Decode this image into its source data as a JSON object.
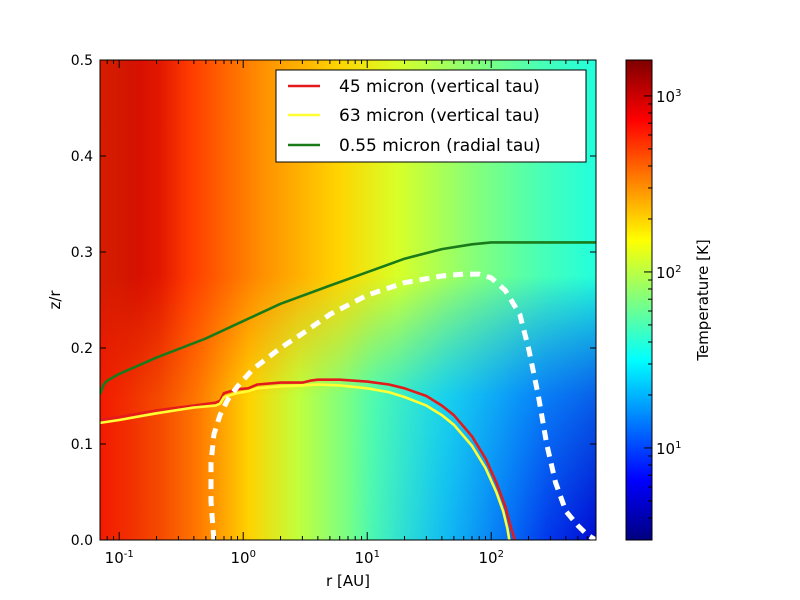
{
  "chart_data": {
    "type": "heatmap",
    "title": "",
    "xlabel": "r [AU]",
    "ylabel": "z/r",
    "xscale": "log",
    "xlim": [
      0.07,
      700
    ],
    "ylim": [
      0.0,
      0.5
    ],
    "x_ticks": [
      {
        "value": 0.1,
        "base": "10",
        "exp": "-1"
      },
      {
        "value": 1,
        "base": "10",
        "exp": "0"
      },
      {
        "value": 10,
        "base": "10",
        "exp": "1"
      },
      {
        "value": 100,
        "base": "10",
        "exp": "2"
      }
    ],
    "y_ticks": [
      {
        "value": 0.0,
        "label": "0.0"
      },
      {
        "value": 0.1,
        "label": "0.1"
      },
      {
        "value": 0.2,
        "label": "0.2"
      },
      {
        "value": 0.3,
        "label": "0.3"
      },
      {
        "value": 0.4,
        "label": "0.4"
      },
      {
        "value": 0.5,
        "label": "0.5"
      }
    ],
    "colorbar": {
      "label": "Temperature [K]",
      "scale": "log",
      "range": [
        3,
        1600
      ],
      "colormap": "jet",
      "ticks": [
        {
          "value": 10,
          "base": "10",
          "exp": "1"
        },
        {
          "value": 100,
          "base": "10",
          "exp": "2"
        },
        {
          "value": 1000,
          "base": "10",
          "exp": "3"
        }
      ]
    },
    "series": [
      {
        "name": "45 micron (vertical tau)",
        "color": "#e31a1c",
        "style": "solid",
        "x": [
          0.07,
          0.1,
          0.2,
          0.4,
          0.6,
          0.65,
          0.7,
          0.9,
          1.1,
          1.3,
          2,
          3,
          3.5,
          4,
          6,
          10,
          15,
          20,
          30,
          40,
          50,
          70,
          90,
          110,
          130,
          145,
          155
        ],
        "y": [
          0.125,
          0.128,
          0.135,
          0.14,
          0.143,
          0.145,
          0.153,
          0.157,
          0.158,
          0.162,
          0.164,
          0.164,
          0.166,
          0.167,
          0.167,
          0.165,
          0.162,
          0.158,
          0.15,
          0.14,
          0.13,
          0.108,
          0.085,
          0.06,
          0.035,
          0.012,
          0.0
        ]
      },
      {
        "name": "63 micron (vertical tau)",
        "color": "#ffff33",
        "style": "solid",
        "x": [
          0.07,
          0.1,
          0.2,
          0.4,
          0.6,
          0.65,
          0.7,
          0.9,
          1.1,
          1.3,
          2,
          3,
          4,
          6,
          10,
          15,
          20,
          30,
          40,
          50,
          70,
          90,
          110,
          125,
          135,
          140
        ],
        "y": [
          0.122,
          0.125,
          0.132,
          0.138,
          0.14,
          0.142,
          0.149,
          0.153,
          0.155,
          0.158,
          0.16,
          0.161,
          0.162,
          0.161,
          0.158,
          0.154,
          0.149,
          0.14,
          0.13,
          0.12,
          0.098,
          0.075,
          0.05,
          0.03,
          0.012,
          0.0
        ]
      },
      {
        "name": "0.55 micron (radial tau)",
        "color": "#1a7a1a",
        "style": "solid",
        "x": [
          0.07,
          0.075,
          0.08,
          0.1,
          0.2,
          0.5,
          1,
          2,
          5,
          10,
          20,
          40,
          70,
          100,
          700
        ],
        "y": [
          0.152,
          0.162,
          0.166,
          0.173,
          0.19,
          0.21,
          0.228,
          0.246,
          0.265,
          0.279,
          0.293,
          0.303,
          0.308,
          0.31,
          0.31
        ]
      },
      {
        "name": "",
        "color": "#ffffff",
        "style": "dashed",
        "x": [
          0.58,
          0.55,
          0.55,
          0.58,
          0.65,
          0.75,
          0.9,
          1.2,
          2,
          3,
          5,
          10,
          20,
          40,
          60,
          80,
          100,
          130,
          170,
          200,
          240,
          280,
          330,
          400,
          500,
          600,
          700
        ],
        "y": [
          0.0,
          0.04,
          0.08,
          0.11,
          0.13,
          0.146,
          0.16,
          0.178,
          0.2,
          0.215,
          0.235,
          0.255,
          0.268,
          0.275,
          0.277,
          0.277,
          0.273,
          0.26,
          0.235,
          0.2,
          0.15,
          0.1,
          0.06,
          0.03,
          0.015,
          0.005,
          0.0
        ]
      }
    ],
    "legend": {
      "position": "top-right",
      "entries": [
        {
          "label": "45 micron (vertical tau)",
          "color": "#e31a1c"
        },
        {
          "label": "63 micron (vertical tau)",
          "color": "#ffff33"
        },
        {
          "label": "0.55 micron (radial tau)",
          "color": "#1a7a1a"
        }
      ]
    }
  }
}
